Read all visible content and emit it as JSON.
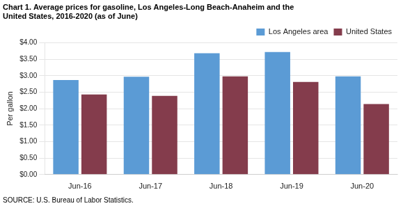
{
  "chart_data": {
    "type": "bar",
    "title": "Chart 1. Average prices for gasoline, Los Angeles-Long Beach-Anaheim and the\nUnited States, 2016-2020 (as of June)",
    "ylabel": "Per gallon",
    "source": "SOURCE: U.S. Bureau of Labor Statistics.",
    "categories": [
      "Jun-16",
      "Jun-17",
      "Jun-18",
      "Jun-19",
      "Jun-20"
    ],
    "series": [
      {
        "name": "Los Angeles area",
        "color": "#5B9BD5",
        "values": [
          2.87,
          2.97,
          3.68,
          3.72,
          2.98
        ]
      },
      {
        "name": "United States",
        "color": "#843C4C",
        "values": [
          2.43,
          2.39,
          2.98,
          2.81,
          2.14
        ]
      }
    ],
    "ylim": [
      0,
      4.0
    ],
    "yticks": [
      {
        "value": 0.0,
        "label": "$0.00"
      },
      {
        "value": 0.5,
        "label": "$0.50"
      },
      {
        "value": 1.0,
        "label": "$1.00"
      },
      {
        "value": 1.5,
        "label": "$1.50"
      },
      {
        "value": 2.0,
        "label": "$2.00"
      },
      {
        "value": 2.5,
        "label": "$2.50"
      },
      {
        "value": 3.0,
        "label": "$3.00"
      },
      {
        "value": 3.5,
        "label": "$3.50"
      },
      {
        "value": 4.0,
        "label": "$4.00"
      }
    ],
    "grid": true,
    "legend": "upper right"
  }
}
